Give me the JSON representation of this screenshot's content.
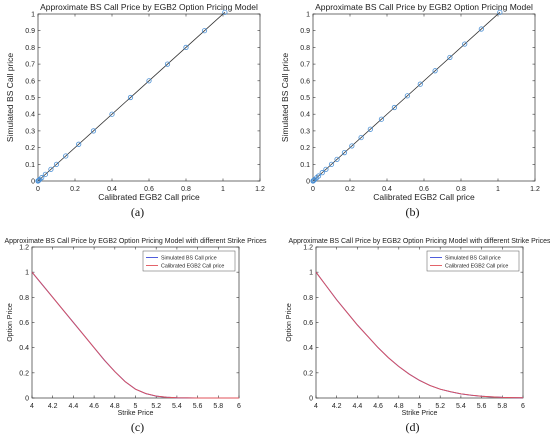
{
  "chart_data": [
    {
      "type": "scatter",
      "title": "Approximate BS Call Price by EGB2 Option Pricing Model",
      "xlabel": "Calibrated EGB2 Call price",
      "ylabel": "Simulated BS Call price",
      "xlim": [
        0,
        1.2
      ],
      "ylim": [
        0,
        1
      ],
      "xticks": [
        "0",
        "0.2",
        "0.4",
        "0.6",
        "0.8",
        "1",
        "1.2"
      ],
      "yticks": [
        "0",
        "0.1",
        "0.2",
        "0.3",
        "0.4",
        "0.5",
        "0.6",
        "0.7",
        "0.8",
        "0.9",
        "1"
      ],
      "grid": false,
      "colors": {
        "marker": "#4a8fd4",
        "line": "#333333"
      },
      "series": [
        {
          "marker": "circle",
          "x": [
            0,
            0.002,
            0.005,
            0.01,
            0.02,
            0.04,
            0.07,
            0.1,
            0.15,
            0.22,
            0.3,
            0.4,
            0.5,
            0.6,
            0.7,
            0.8,
            0.9,
            1.01
          ],
          "y": [
            0,
            0.002,
            0.005,
            0.01,
            0.02,
            0.04,
            0.07,
            0.1,
            0.15,
            0.22,
            0.3,
            0.4,
            0.5,
            0.6,
            0.7,
            0.8,
            0.9,
            1.01
          ]
        }
      ],
      "caption": "(a)"
    },
    {
      "type": "scatter",
      "title": "Approximate BS Call Price by EGB2 Option Pricing Model",
      "xlabel": "Calibrated EGB2 Call price",
      "ylabel": "Simulated BS Call price",
      "xlim": [
        0,
        1.2
      ],
      "ylim": [
        0,
        1
      ],
      "xticks": [
        "0",
        "0.2",
        "0.4",
        "0.6",
        "0.8",
        "1",
        "1.2"
      ],
      "yticks": [
        "0",
        "0.1",
        "0.2",
        "0.3",
        "0.4",
        "0.5",
        "0.6",
        "0.7",
        "0.8",
        "0.9",
        "1"
      ],
      "grid": false,
      "colors": {
        "marker": "#4a8fd4",
        "line": "#333333"
      },
      "series": [
        {
          "marker": "circle",
          "x": [
            0,
            0.002,
            0.005,
            0.01,
            0.02,
            0.03,
            0.05,
            0.07,
            0.1,
            0.13,
            0.17,
            0.21,
            0.26,
            0.31,
            0.37,
            0.44,
            0.51,
            0.58,
            0.66,
            0.74,
            0.82,
            0.91,
            1.01
          ],
          "y": [
            0,
            0.002,
            0.005,
            0.01,
            0.02,
            0.03,
            0.05,
            0.07,
            0.1,
            0.13,
            0.17,
            0.21,
            0.26,
            0.31,
            0.37,
            0.44,
            0.51,
            0.58,
            0.66,
            0.74,
            0.82,
            0.91,
            1.01
          ]
        }
      ],
      "caption": "(b)"
    },
    {
      "type": "line",
      "title": "Approximate BS Call Price by EGB2 Option Pricing Model with different Strike Prices",
      "xlabel": "Strike Price",
      "ylabel": "Option Price",
      "xlim": [
        4,
        6
      ],
      "ylim": [
        0,
        1.2
      ],
      "xticks": [
        "4",
        "4.2",
        "4.4",
        "4.6",
        "4.8",
        "5",
        "5.2",
        "5.4",
        "5.6",
        "5.8",
        "6"
      ],
      "yticks": [
        "0",
        "0.2",
        "0.4",
        "0.6",
        "0.8",
        "1",
        "1.2"
      ],
      "legend": "top-right",
      "grid": false,
      "x": [
        4.0,
        4.1,
        4.2,
        4.3,
        4.4,
        4.5,
        4.6,
        4.7,
        4.8,
        4.9,
        5.0,
        5.1,
        5.2,
        5.3,
        5.4,
        5.5,
        5.6,
        5.7,
        5.8,
        5.9,
        6.0
      ],
      "series": [
        {
          "name": "Simulated BS Call price",
          "color": "#3b4bd8",
          "values": [
            1.0,
            0.9,
            0.8,
            0.7,
            0.6,
            0.5,
            0.4,
            0.3,
            0.21,
            0.13,
            0.07,
            0.035,
            0.015,
            0.006,
            0.002,
            0.001,
            0.0,
            0.0,
            0.0,
            0.0,
            0.0
          ]
        },
        {
          "name": "Calibrated EGB2 Call price",
          "color": "#e0525a",
          "values": [
            1.0,
            0.9,
            0.8,
            0.7,
            0.6,
            0.5,
            0.4,
            0.3,
            0.21,
            0.13,
            0.07,
            0.035,
            0.015,
            0.006,
            0.002,
            0.001,
            0.0,
            0.0,
            0.0,
            0.0,
            0.0
          ]
        }
      ],
      "caption": "(c)"
    },
    {
      "type": "line",
      "title": "Approximate BS Call Price by EGB2 Option Pricing Model with different Strike Prices",
      "xlabel": "Strike Price",
      "ylabel": "Option Price",
      "xlim": [
        4,
        6
      ],
      "ylim": [
        0,
        1.2
      ],
      "xticks": [
        "4",
        "4.2",
        "4.4",
        "4.6",
        "4.8",
        "5",
        "5.2",
        "5.4",
        "5.6",
        "5.8",
        "6"
      ],
      "yticks": [
        "0",
        "0.2",
        "0.4",
        "0.6",
        "0.8",
        "1",
        "1.2"
      ],
      "legend": "top-right",
      "grid": false,
      "x": [
        4.0,
        4.1,
        4.2,
        4.3,
        4.4,
        4.5,
        4.6,
        4.7,
        4.8,
        4.9,
        5.0,
        5.1,
        5.2,
        5.3,
        5.4,
        5.5,
        5.6,
        5.7,
        5.8,
        5.9,
        6.0
      ],
      "series": [
        {
          "name": "Simulated BS Call price",
          "color": "#3b4bd8",
          "values": [
            1.0,
            0.89,
            0.78,
            0.68,
            0.58,
            0.49,
            0.4,
            0.32,
            0.25,
            0.19,
            0.14,
            0.1,
            0.07,
            0.05,
            0.033,
            0.022,
            0.014,
            0.009,
            0.005,
            0.003,
            0.002
          ]
        },
        {
          "name": "Calibrated EGB2 Call price",
          "color": "#e0525a",
          "values": [
            1.0,
            0.89,
            0.78,
            0.68,
            0.58,
            0.49,
            0.4,
            0.32,
            0.25,
            0.19,
            0.14,
            0.1,
            0.07,
            0.05,
            0.033,
            0.022,
            0.014,
            0.009,
            0.005,
            0.003,
            0.002
          ]
        }
      ],
      "caption": "(d)"
    }
  ]
}
